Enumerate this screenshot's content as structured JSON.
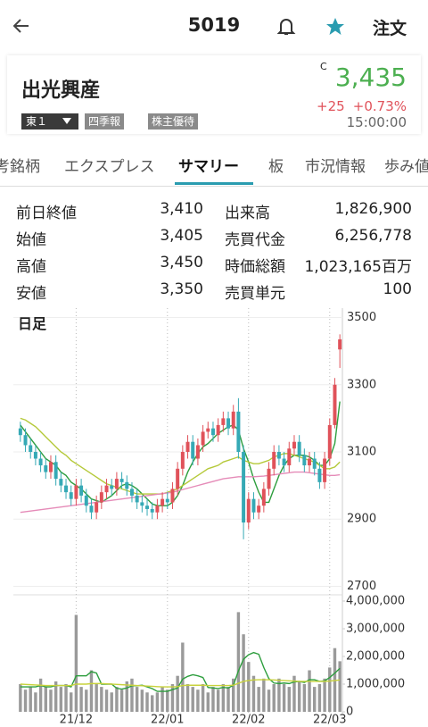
{
  "header": {
    "title": "5019",
    "order": "注文"
  },
  "stock": {
    "name": "出光興産",
    "market": "東１",
    "tags": [
      "四季報",
      "株主優待"
    ],
    "price_flag": "C",
    "price": "3,435",
    "change": "+25",
    "change_pct": "+0.73%",
    "time": "15:00:00"
  },
  "tabs": [
    "考銘柄",
    "エクスプレス",
    "サマリー",
    "板",
    "市況情報",
    "歩み値"
  ],
  "active_tab": 2,
  "stats": {
    "rows": [
      [
        "前日終値",
        "3,410",
        "出来高",
        "1,826,900"
      ],
      [
        "始値",
        "3,405",
        "売買代金",
        "6,256,778"
      ],
      [
        "高値",
        "3,450",
        "時価総額",
        "1,023,165百万"
      ],
      [
        "安値",
        "3,350",
        "売買単元",
        "100"
      ]
    ]
  },
  "chart_data": {
    "type": "candlestick",
    "title": "日足",
    "categories": [
      null,
      null,
      null,
      null,
      null,
      null,
      null,
      null,
      null,
      null,
      null,
      "21/12",
      null,
      null,
      null,
      null,
      null,
      null,
      null,
      null,
      null,
      null,
      null,
      null,
      null,
      null,
      null,
      null,
      null,
      "22/01",
      null,
      null,
      null,
      null,
      null,
      null,
      null,
      null,
      null,
      null,
      null,
      null,
      null,
      null,
      null,
      "22/02",
      null,
      null,
      null,
      null,
      null,
      null,
      null,
      null,
      null,
      null,
      null,
      null,
      null,
      null,
      null,
      "22/03",
      null,
      null
    ],
    "open": [
      3170,
      3150,
      3120,
      3100,
      3080,
      3060,
      3040,
      3070,
      3020,
      3000,
      2980,
      2960,
      3000,
      2970,
      2940,
      2920,
      2950,
      2980,
      3000,
      2990,
      3020,
      3010,
      2990,
      2970,
      2950,
      2940,
      2930,
      2920,
      2940,
      2960,
      2950,
      2990,
      3050,
      3100,
      3130,
      3080,
      3120,
      3160,
      3170,
      3150,
      3180,
      3200,
      3170,
      3220,
      3100,
      2890,
      2960,
      2920,
      2940,
      2990,
      3050,
      3100,
      3080,
      3060,
      3110,
      3130,
      3090,
      3060,
      3080,
      3050,
      3010,
      3080,
      3180,
      3405
    ],
    "high": [
      3190,
      3170,
      3140,
      3120,
      3100,
      3080,
      3090,
      3090,
      3040,
      3020,
      3000,
      3020,
      3020,
      2990,
      2960,
      2970,
      3000,
      3020,
      3020,
      3040,
      3040,
      3030,
      3010,
      2990,
      2970,
      2960,
      2950,
      2960,
      2980,
      2980,
      3010,
      3070,
      3120,
      3150,
      3150,
      3140,
      3180,
      3190,
      3190,
      3200,
      3220,
      3220,
      3240,
      3260,
      3120,
      2980,
      2980,
      2960,
      3010,
      3070,
      3120,
      3120,
      3100,
      3130,
      3150,
      3150,
      3110,
      3100,
      3100,
      3070,
      3100,
      3200,
      3320,
      3450
    ],
    "low": [
      3130,
      3100,
      3080,
      3060,
      3040,
      3020,
      3020,
      3000,
      2980,
      2960,
      2940,
      2940,
      2950,
      2920,
      2900,
      2900,
      2930,
      2960,
      2970,
      2970,
      2990,
      2970,
      2950,
      2930,
      2920,
      2910,
      2900,
      2900,
      2920,
      2930,
      2930,
      2970,
      3030,
      3080,
      3060,
      3060,
      3100,
      3140,
      3130,
      3130,
      3160,
      3150,
      3150,
      3080,
      2840,
      2870,
      2900,
      2900,
      2920,
      2970,
      3030,
      3060,
      3040,
      3040,
      3090,
      3070,
      3040,
      3040,
      3030,
      2990,
      2990,
      3060,
      3170,
      3350
    ],
    "close": [
      3150,
      3120,
      3100,
      3080,
      3060,
      3040,
      3070,
      3020,
      3000,
      2980,
      2960,
      3000,
      2970,
      2940,
      2920,
      2950,
      2980,
      3000,
      2990,
      3020,
      3010,
      2990,
      2970,
      2950,
      2940,
      2930,
      2920,
      2940,
      2960,
      2950,
      2990,
      3050,
      3100,
      3130,
      3080,
      3120,
      3160,
      3170,
      3150,
      3180,
      3200,
      3170,
      3220,
      3100,
      2890,
      2960,
      2920,
      2940,
      2990,
      3050,
      3100,
      3080,
      3060,
      3110,
      3130,
      3090,
      3060,
      3080,
      3050,
      3010,
      3080,
      3180,
      3300,
      3435
    ],
    "up_color": "#e0525a",
    "down_color": "#35a9b5",
    "series": [
      {
        "color": "#2e9e3e",
        "values": [
          3180,
          3160,
          3140,
          3120,
          3100,
          3080,
          3070,
          3060,
          3040,
          3030,
          3010,
          3000,
          2990,
          2975,
          2960,
          2955,
          2950,
          2960,
          2970,
          2985,
          3000,
          3005,
          3000,
          2990,
          2975,
          2960,
          2945,
          2940,
          2940,
          2940,
          2950,
          2970,
          3000,
          3040,
          3070,
          3095,
          3115,
          3125,
          3140,
          3155,
          3165,
          3175,
          3180,
          3165,
          3110,
          3070,
          3020,
          2980,
          2950,
          2950,
          2990,
          3030,
          3060,
          3080,
          3090,
          3090,
          3090,
          3085,
          3075,
          3060,
          3060,
          3080,
          3125,
          3250
        ]
      },
      {
        "color": "#b5c93a",
        "values": [
          3200,
          3195,
          3185,
          3175,
          3160,
          3145,
          3130,
          3115,
          3100,
          3090,
          3075,
          3065,
          3055,
          3045,
          3035,
          3025,
          3015,
          3005,
          3000,
          2995,
          2990,
          2985,
          2980,
          2975,
          2975,
          2975,
          2975,
          2975,
          2975,
          2980,
          2985,
          2990,
          3000,
          3010,
          3020,
          3030,
          3040,
          3050,
          3055,
          3060,
          3070,
          3075,
          3080,
          3085,
          3075,
          3070,
          3065,
          3065,
          3070,
          3075,
          3085,
          3090,
          3095,
          3095,
          3090,
          3085,
          3080,
          3075,
          3070,
          3060,
          3050,
          3050,
          3055,
          3070
        ]
      },
      {
        "color": "#e58bb8",
        "values": [
          2920,
          2922,
          2924,
          2926,
          2928,
          2930,
          2932,
          2934,
          2936,
          2938,
          2940,
          2942,
          2944,
          2946,
          2948,
          2950,
          2952,
          2954,
          2956,
          2958,
          2960,
          2962,
          2964,
          2966,
          2968,
          2970,
          2972,
          2974,
          2976,
          2978,
          2980,
          2984,
          2988,
          2992,
          2996,
          3000,
          3004,
          3008,
          3012,
          3016,
          3020,
          3022,
          3024,
          3026,
          3026,
          3026,
          3026,
          3027,
          3028,
          3030,
          3032,
          3034,
          3036,
          3038,
          3040,
          3040,
          3040,
          3038,
          3036,
          3034,
          3032,
          3030,
          3030,
          3032
        ]
      }
    ],
    "ylim": [
      2680,
      3520
    ],
    "yticks": [
      3500,
      3300,
      3100,
      2900,
      2700
    ],
    "grid": true,
    "volume": {
      "color": "#9a9a9a",
      "values": [
        1000000,
        800000,
        900000,
        700000,
        1200000,
        900000,
        800000,
        1100000,
        900000,
        1000000,
        700000,
        3500000,
        900000,
        800000,
        1500000,
        1000000,
        900000,
        800000,
        700000,
        900000,
        800000,
        1100000,
        1200000,
        900000,
        800000,
        700000,
        600000,
        700000,
        900000,
        800000,
        1000000,
        1300000,
        2500000,
        1000000,
        900000,
        800000,
        1000000,
        700000,
        900000,
        800000,
        1000000,
        900000,
        1200000,
        3600000,
        2800000,
        1800000,
        1300000,
        900000,
        1200000,
        800000,
        1000000,
        1200000,
        1000000,
        900000,
        1300000,
        1100000,
        1000000,
        1500000,
        900000,
        1000000,
        1200000,
        1600000,
        2300000,
        1826900
      ],
      "series": [
        {
          "color": "#2e9e3e",
          "values": [
            900000,
            900000,
            900000,
            900000,
            950000,
            900000,
            900000,
            950000,
            950000,
            950000,
            900000,
            1300000,
            1300000,
            1300000,
            1450000,
            1400000,
            1000000,
            1000000,
            1000000,
            850000,
            820000,
            860000,
            940000,
            940000,
            960000,
            900000,
            840000,
            740000,
            740000,
            740000,
            800000,
            860000,
            1180000,
            1280000,
            1340000,
            1300000,
            1240000,
            880000,
            860000,
            840000,
            880000,
            860000,
            960000,
            1480000,
            1900000,
            2060000,
            2140000,
            2080000,
            1600000,
            1200000,
            1040000,
            1020000,
            1040000,
            1020000,
            1080000,
            1100000,
            1060000,
            1160000,
            1160000,
            1100000,
            1120000,
            1240000,
            1400000,
            1570000
          ]
        },
        {
          "color": "#c8d23c",
          "values": [
            1000000,
            990000,
            980000,
            970000,
            960000,
            950000,
            950000,
            950000,
            950000,
            950000,
            950000,
            1000000,
            1000000,
            1000000,
            1020000,
            1020000,
            1020000,
            1010000,
            1000000,
            990000,
            980000,
            970000,
            960000,
            950000,
            940000,
            930000,
            920000,
            910000,
            900000,
            900000,
            900000,
            910000,
            950000,
            960000,
            960000,
            960000,
            960000,
            950000,
            950000,
            950000,
            950000,
            950000,
            960000,
            1030000,
            1100000,
            1130000,
            1150000,
            1160000,
            1160000,
            1160000,
            1150000,
            1140000,
            1130000,
            1120000,
            1110000,
            1100000,
            1100000,
            1100000,
            1100000,
            1100000,
            1100000,
            1110000,
            1130000,
            1150000
          ]
        }
      ],
      "ylim": [
        0,
        4000000
      ],
      "yticks": [
        {
          "value": 4000000,
          "label": "4,000,000"
        },
        {
          "value": 3000000,
          "label": "3,000,000"
        },
        {
          "value": 2000000,
          "label": "2,000,000"
        },
        {
          "value": 1000000,
          "label": "1,000,000"
        },
        0
      ]
    }
  }
}
